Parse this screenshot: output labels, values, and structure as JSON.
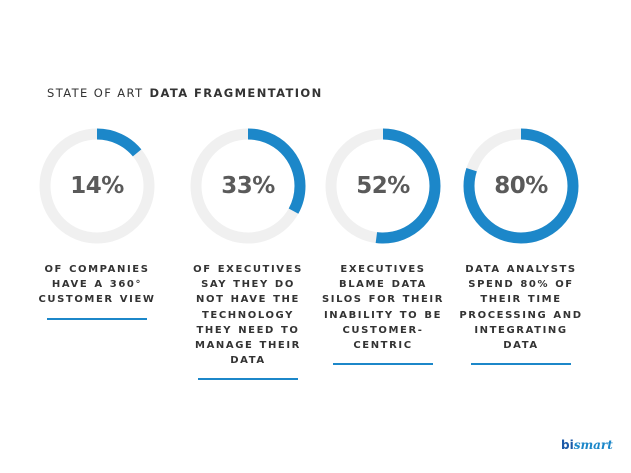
{
  "header": {
    "light": "STATE OF ART",
    "bold": "DATA FRAGMENTATION"
  },
  "colors": {
    "accent": "#1c87c9",
    "track": "#f0f0f0"
  },
  "chart_data": {
    "type": "pie",
    "items": [
      {
        "label": "14%",
        "value": 14,
        "text": "OF COMPANIES HAVE A 360° CUSTOMER VIEW"
      },
      {
        "label": "33%",
        "value": 33,
        "text": "OF EXECUTIVES SAY THEY DO NOT HAVE THE TECHNOLOGY THEY NEED TO MANAGE THEIR DATA"
      },
      {
        "label": "52%",
        "value": 52,
        "text": "EXECUTIVES BLAME DATA SILOS FOR THEIR INABILITY TO BE CUSTOMER-CENTRIC"
      },
      {
        "label": "80%",
        "value": 80,
        "text": "DATA ANALYSTS SPEND 80% OF THEIR TIME PROCESSING AND INTEGRATING DATA"
      }
    ]
  },
  "logo": {
    "part1": "bi",
    "part2": "smart"
  }
}
